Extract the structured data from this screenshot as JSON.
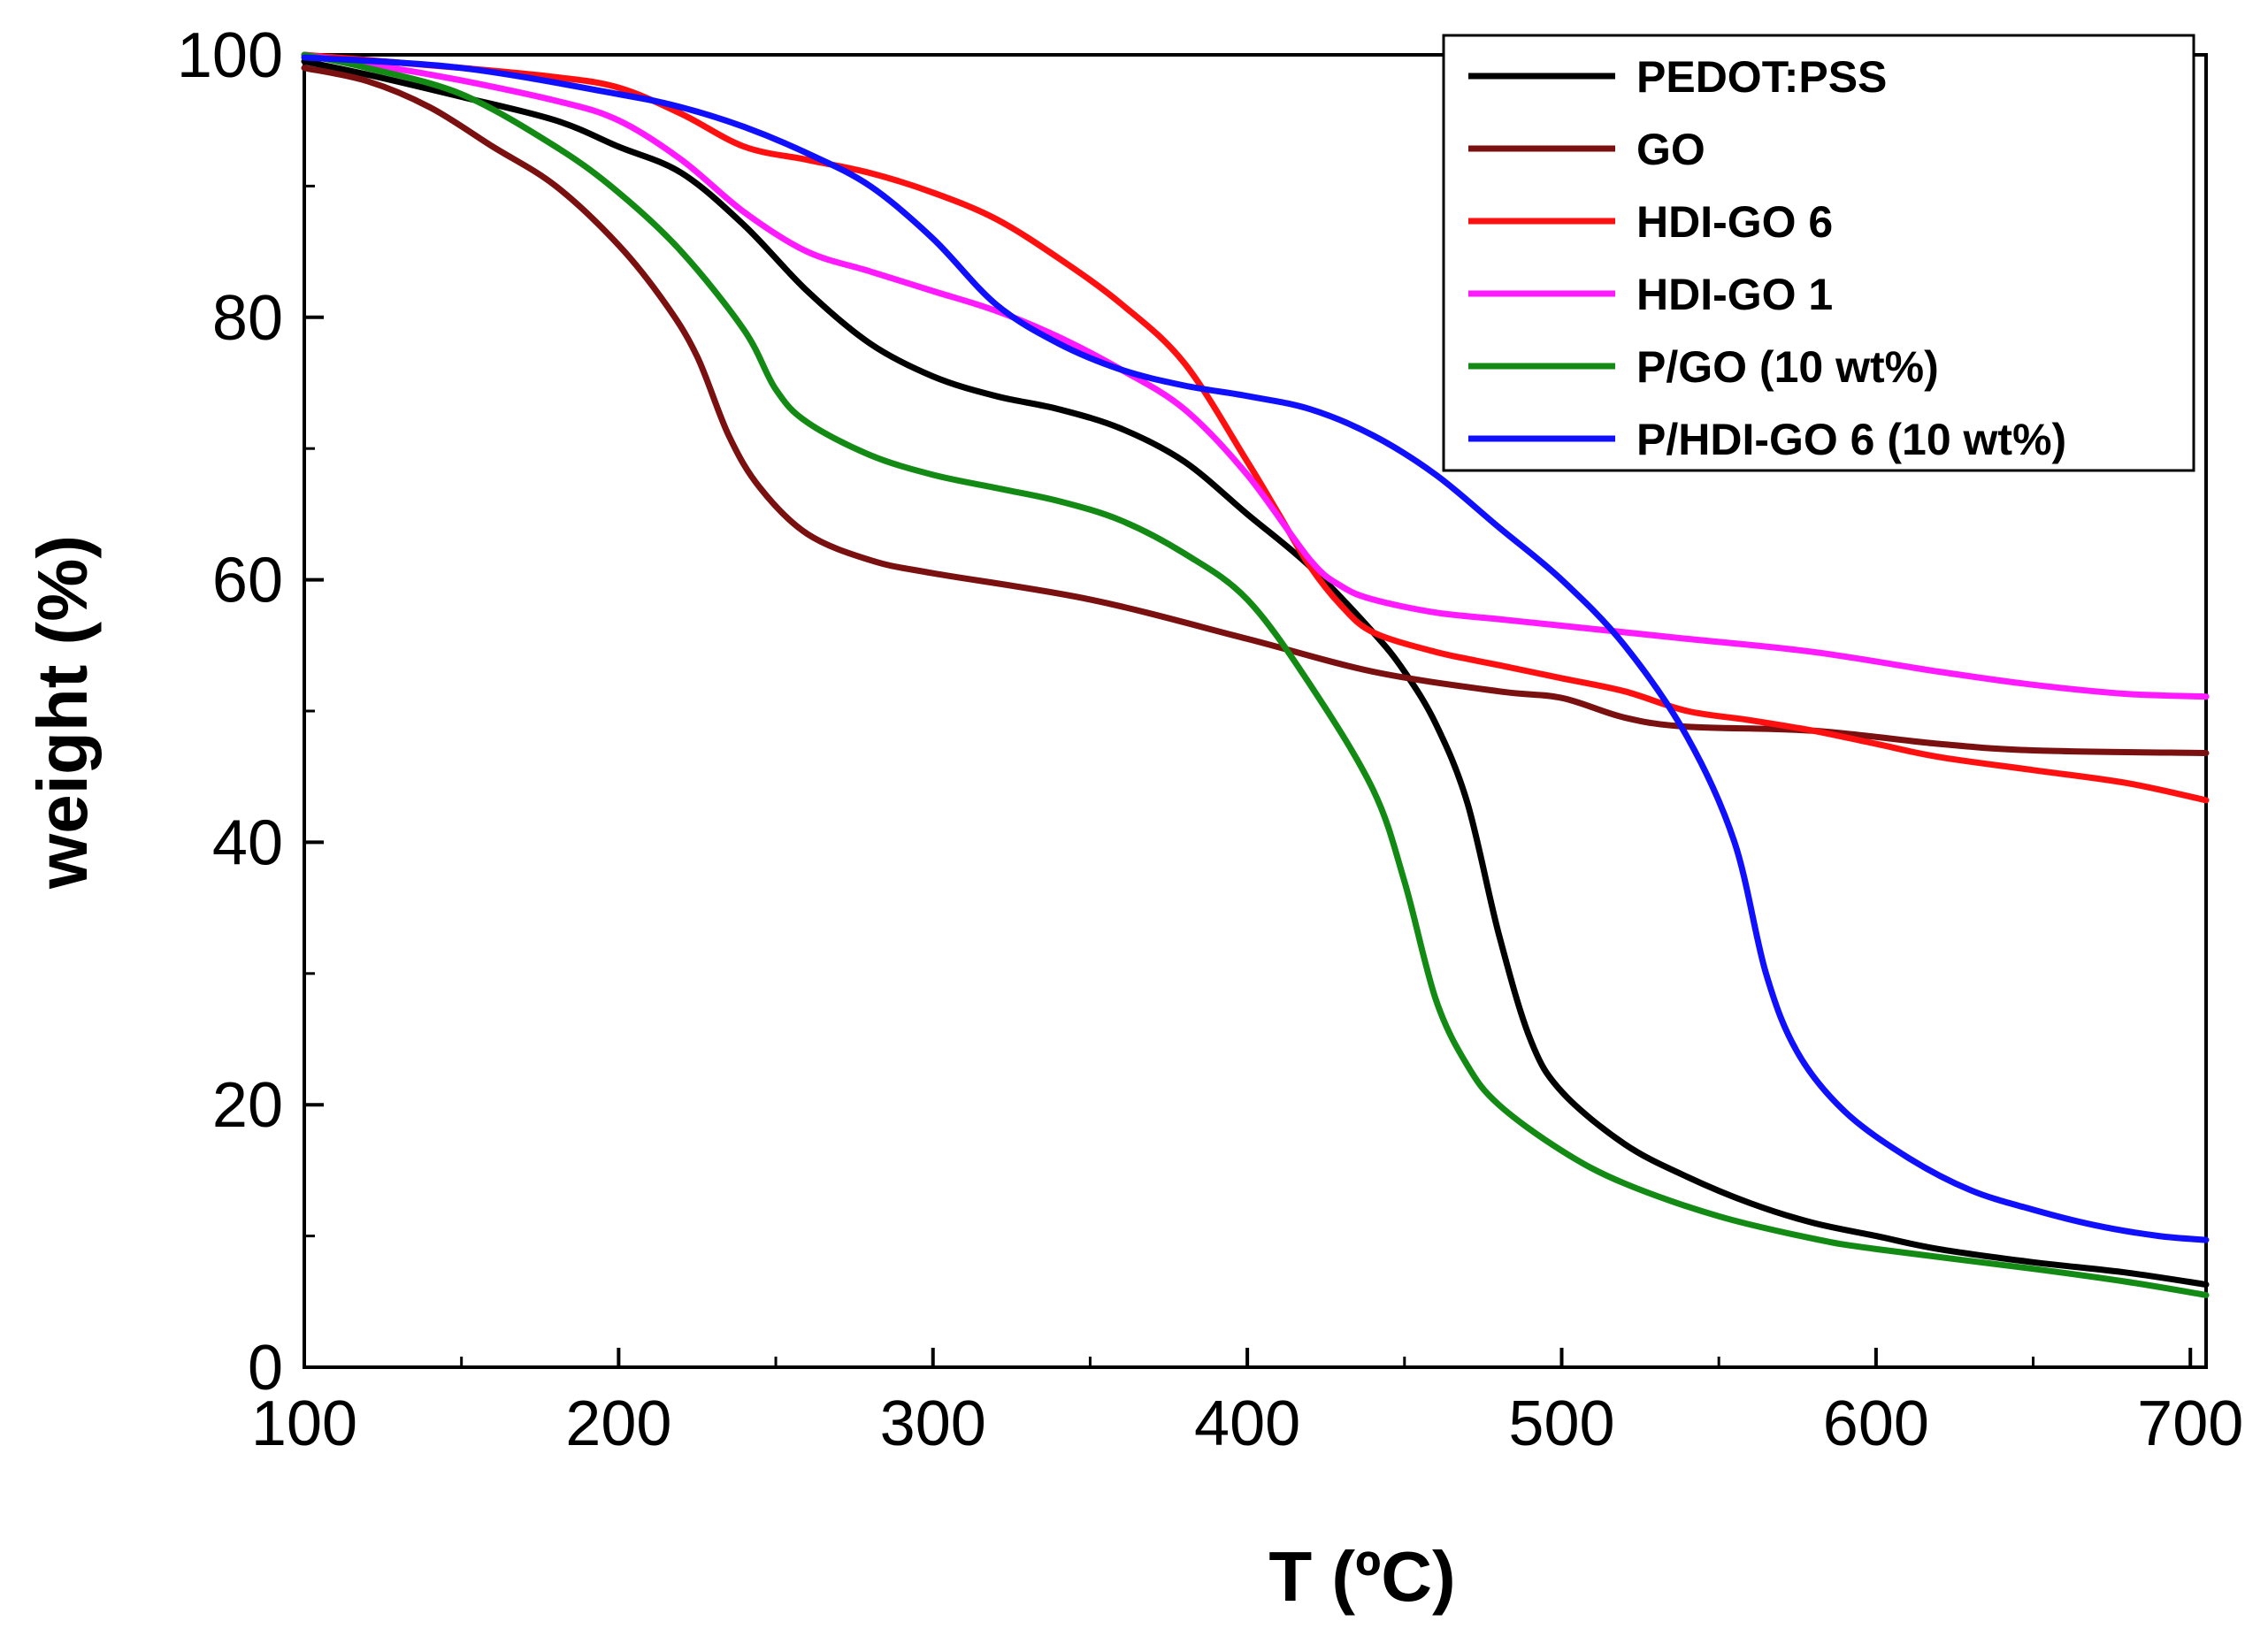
{
  "chart_data": {
    "type": "line",
    "title": "",
    "xlabel": "T (ºC)",
    "ylabel": "weight (%)",
    "xlim": [
      100,
      705
    ],
    "ylim": [
      0,
      100
    ],
    "x_ticks": [
      100,
      200,
      300,
      400,
      500,
      600,
      700
    ],
    "y_ticks": [
      0,
      20,
      40,
      60,
      80,
      100
    ],
    "x_tick_labels": [
      "100",
      "200",
      "300",
      "400",
      "500",
      "600",
      "700"
    ],
    "y_tick_labels": [
      "0",
      "20",
      "40",
      "60",
      "80",
      "100"
    ],
    "grid": false,
    "legend_position": "top-right",
    "series": [
      {
        "name": "PEDOT:PSS",
        "color": "#000000",
        "points": [
          [
            100,
            99.5
          ],
          [
            120,
            98.5
          ],
          [
            150,
            96.8
          ],
          [
            180,
            95
          ],
          [
            200,
            93
          ],
          [
            220,
            91
          ],
          [
            240,
            87
          ],
          [
            260,
            82
          ],
          [
            280,
            78
          ],
          [
            300,
            75.5
          ],
          [
            320,
            74
          ],
          [
            340,
            73
          ],
          [
            360,
            71.5
          ],
          [
            380,
            69
          ],
          [
            400,
            65
          ],
          [
            420,
            61
          ],
          [
            440,
            56
          ],
          [
            450,
            53
          ],
          [
            460,
            49
          ],
          [
            470,
            43
          ],
          [
            480,
            33
          ],
          [
            490,
            25
          ],
          [
            500,
            21
          ],
          [
            520,
            17
          ],
          [
            540,
            14.5
          ],
          [
            560,
            12.5
          ],
          [
            580,
            11
          ],
          [
            600,
            10
          ],
          [
            620,
            9
          ],
          [
            650,
            8
          ],
          [
            680,
            7.2
          ],
          [
            705,
            6.3
          ]
        ]
      },
      {
        "name": "GO",
        "color": "#7a1010",
        "points": [
          [
            100,
            99
          ],
          [
            120,
            98
          ],
          [
            140,
            96
          ],
          [
            160,
            93
          ],
          [
            180,
            90
          ],
          [
            200,
            85.5
          ],
          [
            215,
            81
          ],
          [
            225,
            77
          ],
          [
            235,
            71
          ],
          [
            245,
            67
          ],
          [
            260,
            63.5
          ],
          [
            280,
            61.5
          ],
          [
            300,
            60.5
          ],
          [
            350,
            58.5
          ],
          [
            400,
            55.5
          ],
          [
            440,
            53
          ],
          [
            480,
            51.5
          ],
          [
            500,
            51
          ],
          [
            520,
            49.5
          ],
          [
            540,
            48.8
          ],
          [
            580,
            48.5
          ],
          [
            620,
            47.5
          ],
          [
            650,
            47
          ],
          [
            705,
            46.8
          ]
        ]
      },
      {
        "name": "HDI-GO 6",
        "color": "#ff1010",
        "points": [
          [
            100,
            100
          ],
          [
            150,
            99
          ],
          [
            180,
            98.3
          ],
          [
            200,
            97.5
          ],
          [
            220,
            95.5
          ],
          [
            240,
            93
          ],
          [
            260,
            92
          ],
          [
            280,
            91
          ],
          [
            300,
            89.5
          ],
          [
            320,
            87.5
          ],
          [
            340,
            84.5
          ],
          [
            360,
            81
          ],
          [
            380,
            76.5
          ],
          [
            400,
            69
          ],
          [
            410,
            65
          ],
          [
            420,
            61
          ],
          [
            430,
            58
          ],
          [
            440,
            56
          ],
          [
            460,
            54.5
          ],
          [
            480,
            53.5
          ],
          [
            500,
            52.5
          ],
          [
            520,
            51.5
          ],
          [
            540,
            50
          ],
          [
            560,
            49.3
          ],
          [
            580,
            48.5
          ],
          [
            600,
            47.5
          ],
          [
            620,
            46.5
          ],
          [
            650,
            45.5
          ],
          [
            680,
            44.5
          ],
          [
            705,
            43.2
          ]
        ]
      },
      {
        "name": "HDI-GO 1",
        "color": "#ff1aff",
        "points": [
          [
            100,
            100
          ],
          [
            140,
            98.5
          ],
          [
            180,
            96.5
          ],
          [
            200,
            95
          ],
          [
            220,
            92
          ],
          [
            240,
            88
          ],
          [
            260,
            85
          ],
          [
            280,
            83.5
          ],
          [
            300,
            82
          ],
          [
            320,
            80.5
          ],
          [
            340,
            78.5
          ],
          [
            360,
            76
          ],
          [
            380,
            73
          ],
          [
            400,
            68
          ],
          [
            420,
            61.5
          ],
          [
            430,
            59.5
          ],
          [
            440,
            58.5
          ],
          [
            460,
            57.5
          ],
          [
            480,
            57
          ],
          [
            500,
            56.5
          ],
          [
            540,
            55.5
          ],
          [
            580,
            54.5
          ],
          [
            620,
            53
          ],
          [
            650,
            52
          ],
          [
            680,
            51.3
          ],
          [
            705,
            51.1
          ]
        ]
      },
      {
        "name": "P/GO (10 wt%)",
        "color": "#138a13",
        "points": [
          [
            100,
            100
          ],
          [
            120,
            99
          ],
          [
            150,
            97
          ],
          [
            180,
            93
          ],
          [
            200,
            89.5
          ],
          [
            220,
            85
          ],
          [
            240,
            79
          ],
          [
            250,
            74.5
          ],
          [
            260,
            72
          ],
          [
            280,
            69.5
          ],
          [
            300,
            68
          ],
          [
            320,
            67
          ],
          [
            340,
            66
          ],
          [
            360,
            64.5
          ],
          [
            380,
            62
          ],
          [
            400,
            58.5
          ],
          [
            420,
            52
          ],
          [
            440,
            44
          ],
          [
            450,
            37
          ],
          [
            460,
            28
          ],
          [
            470,
            23
          ],
          [
            480,
            20
          ],
          [
            500,
            16.5
          ],
          [
            520,
            14
          ],
          [
            550,
            11.5
          ],
          [
            580,
            9.8
          ],
          [
            600,
            9
          ],
          [
            650,
            7.5
          ],
          [
            680,
            6.5
          ],
          [
            705,
            5.5
          ]
        ]
      },
      {
        "name": "P/HDI-GO 6 (10 wt%)",
        "color": "#1010ff",
        "points": [
          [
            100,
            99.8
          ],
          [
            150,
            99
          ],
          [
            200,
            97
          ],
          [
            220,
            96
          ],
          [
            240,
            94.5
          ],
          [
            260,
            92.5
          ],
          [
            280,
            90
          ],
          [
            300,
            86
          ],
          [
            320,
            81
          ],
          [
            340,
            78
          ],
          [
            360,
            76
          ],
          [
            380,
            74.8
          ],
          [
            400,
            74
          ],
          [
            420,
            73
          ],
          [
            440,
            71
          ],
          [
            460,
            68
          ],
          [
            480,
            64
          ],
          [
            500,
            60
          ],
          [
            520,
            55
          ],
          [
            540,
            48
          ],
          [
            555,
            40
          ],
          [
            565,
            30
          ],
          [
            575,
            24
          ],
          [
            590,
            19.5
          ],
          [
            610,
            16
          ],
          [
            630,
            13.5
          ],
          [
            650,
            12
          ],
          [
            670,
            10.8
          ],
          [
            690,
            10
          ],
          [
            705,
            9.7
          ]
        ]
      }
    ]
  }
}
